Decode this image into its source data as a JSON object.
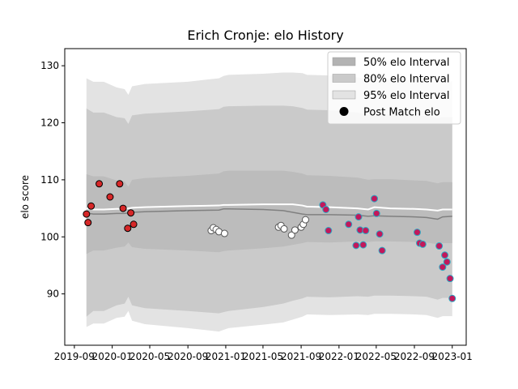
{
  "chart_data": {
    "type": "scatter",
    "title": "Erich Cronje: elo History",
    "ylabel": "elo score",
    "xlabel": "",
    "ylim": [
      81,
      133
    ],
    "xlim": [
      "2019-08-01",
      "2023-02-15"
    ],
    "x_ticks": [
      "2019-09",
      "2020-01",
      "2020-05",
      "2020-09",
      "2021-01",
      "2021-05",
      "2021-09",
      "2022-01",
      "2022-05",
      "2022-09",
      "2023-01"
    ],
    "x_tick_dates": [
      "2019-09-01",
      "2020-01-01",
      "2020-05-01",
      "2020-09-01",
      "2021-01-01",
      "2021-05-01",
      "2021-09-01",
      "2022-01-01",
      "2022-05-01",
      "2022-09-01",
      "2023-01-01"
    ],
    "y_ticks": [
      90,
      100,
      110,
      120,
      130
    ],
    "grid": false,
    "legend": {
      "position": "top-right",
      "entries": [
        {
          "label": "50% elo Interval",
          "color": "#b3b3b3"
        },
        {
          "label": "80% elo Interval",
          "color": "#cacaca"
        },
        {
          "label": "95% elo Interval",
          "color": "#e3e3e3"
        },
        {
          "label": "Post Match elo",
          "color": "#000000"
        }
      ]
    },
    "bands": {
      "x": [
        "2019-10-10",
        "2019-11-01",
        "2019-12-05",
        "2020-01-15",
        "2020-02-10",
        "2020-02-22",
        "2020-03-05",
        "2020-04-15",
        "2020-09-01",
        "2020-12-10",
        "2020-12-25",
        "2021-01-10",
        "2021-05-01",
        "2021-07-05",
        "2021-08-05",
        "2021-09-05",
        "2021-09-20",
        "2021-12-01",
        "2022-03-01",
        "2022-04-05",
        "2022-04-25",
        "2022-06-15",
        "2022-09-01",
        "2022-10-10",
        "2022-11-15",
        "2022-12-01",
        "2023-01-01"
      ],
      "p95_upper": [
        127.8,
        127.2,
        127.2,
        126.2,
        125.9,
        124.9,
        126.4,
        126.8,
        127.2,
        127.8,
        128.2,
        128.4,
        128.6,
        128.8,
        128.8,
        128.7,
        128.4,
        128.3,
        128.0,
        127.6,
        127.6,
        127.6,
        127.4,
        127.4,
        127.2,
        127.3,
        127.3
      ],
      "p95_lower": [
        84.2,
        84.8,
        84.8,
        85.8,
        86.0,
        87.0,
        85.3,
        84.7,
        84.0,
        83.4,
        83.7,
        84.0,
        84.6,
        85.0,
        85.5,
        86.0,
        86.4,
        86.3,
        86.4,
        86.3,
        86.5,
        86.5,
        86.4,
        86.3,
        85.8,
        86.1,
        86.1
      ],
      "p80_upper": [
        122.5,
        121.8,
        121.8,
        121.0,
        120.8,
        119.8,
        121.3,
        121.6,
        122.0,
        122.4,
        122.8,
        122.9,
        123.0,
        123.0,
        122.9,
        122.6,
        122.3,
        122.2,
        121.8,
        121.4,
        121.5,
        121.5,
        121.2,
        121.2,
        120.8,
        121.0,
        121.0
      ],
      "p80_lower": [
        86.0,
        87.0,
        87.0,
        88.0,
        88.3,
        89.5,
        88.0,
        87.5,
        87.0,
        86.6,
        86.8,
        87.0,
        87.7,
        88.3,
        88.8,
        89.2,
        89.5,
        89.4,
        89.6,
        89.5,
        89.7,
        89.7,
        89.6,
        89.5,
        89.0,
        89.3,
        89.3
      ],
      "p50_upper": [
        111.0,
        110.6,
        110.6,
        109.9,
        109.7,
        108.8,
        110.0,
        110.3,
        110.7,
        111.1,
        111.5,
        111.6,
        111.6,
        111.6,
        111.4,
        111.1,
        110.8,
        110.7,
        110.4,
        110.0,
        110.1,
        110.1,
        109.9,
        109.8,
        109.4,
        109.6,
        109.6
      ],
      "p50_lower": [
        97.0,
        97.6,
        97.6,
        98.1,
        98.3,
        99.0,
        98.2,
        97.9,
        97.6,
        97.3,
        97.5,
        97.6,
        98.0,
        98.3,
        98.6,
        98.9,
        99.1,
        99.0,
        99.2,
        99.1,
        99.2,
        99.2,
        99.1,
        99.0,
        98.7,
        98.9,
        98.9
      ],
      "median": [
        104.2,
        104.0,
        104.0,
        104.1,
        104.1,
        104.2,
        104.3,
        104.4,
        104.6,
        104.7,
        104.9,
        104.9,
        104.8,
        104.6,
        104.3,
        104.0,
        103.9,
        103.9,
        103.8,
        103.6,
        103.7,
        103.6,
        103.5,
        103.4,
        103.1,
        103.5,
        103.6
      ],
      "mean": [
        105.0,
        104.8,
        104.8,
        104.9,
        104.9,
        105.0,
        105.1,
        105.2,
        105.4,
        105.5,
        105.6,
        105.6,
        105.7,
        105.7,
        105.7,
        105.5,
        105.3,
        105.2,
        105.0,
        104.8,
        105.2,
        105.0,
        104.9,
        104.8,
        104.6,
        104.8,
        104.8
      ]
    },
    "series": [
      {
        "marker": "circle",
        "fill": "#d62728",
        "edge": "#000000",
        "points": [
          {
            "x": "2019-10-10",
            "y": 104.0
          },
          {
            "x": "2019-10-15",
            "y": 102.5
          },
          {
            "x": "2019-10-25",
            "y": 105.4
          },
          {
            "x": "2019-11-20",
            "y": 109.3
          },
          {
            "x": "2019-12-25",
            "y": 107.0
          },
          {
            "x": "2020-01-25",
            "y": 109.3
          },
          {
            "x": "2020-02-05",
            "y": 105.0
          },
          {
            "x": "2020-02-20",
            "y": 101.5
          },
          {
            "x": "2020-03-01",
            "y": 104.2
          },
          {
            "x": "2020-03-10",
            "y": 102.2
          }
        ]
      },
      {
        "marker": "circle",
        "fill": "#ffffff",
        "edge": "#555555",
        "points": [
          {
            "x": "2020-11-15",
            "y": 101.1
          },
          {
            "x": "2020-11-22",
            "y": 101.6
          },
          {
            "x": "2020-12-01",
            "y": 101.3
          },
          {
            "x": "2020-12-10",
            "y": 100.9
          },
          {
            "x": "2020-12-28",
            "y": 100.6
          },
          {
            "x": "2021-06-20",
            "y": 101.7
          },
          {
            "x": "2021-06-28",
            "y": 102.0
          },
          {
            "x": "2021-07-08",
            "y": 101.4
          },
          {
            "x": "2021-08-01",
            "y": 100.3
          },
          {
            "x": "2021-08-12",
            "y": 101.2
          },
          {
            "x": "2021-09-01",
            "y": 101.7
          },
          {
            "x": "2021-09-08",
            "y": 102.2
          },
          {
            "x": "2021-09-15",
            "y": 103.0
          }
        ]
      },
      {
        "marker": "circle",
        "fill": "#c2185b",
        "edge": "#2aa8c4",
        "points": [
          {
            "x": "2021-11-10",
            "y": 105.6
          },
          {
            "x": "2021-11-20",
            "y": 104.8
          },
          {
            "x": "2021-11-28",
            "y": 101.1
          },
          {
            "x": "2022-02-01",
            "y": 102.2
          },
          {
            "x": "2022-02-25",
            "y": 98.5
          },
          {
            "x": "2022-03-05",
            "y": 103.5
          },
          {
            "x": "2022-03-10",
            "y": 101.2
          },
          {
            "x": "2022-03-20",
            "y": 98.6
          },
          {
            "x": "2022-03-28",
            "y": 101.1
          },
          {
            "x": "2022-04-25",
            "y": 106.7
          },
          {
            "x": "2022-05-02",
            "y": 104.1
          },
          {
            "x": "2022-05-12",
            "y": 100.5
          },
          {
            "x": "2022-05-20",
            "y": 97.6
          },
          {
            "x": "2022-09-10",
            "y": 100.8
          },
          {
            "x": "2022-09-18",
            "y": 98.9
          },
          {
            "x": "2022-09-28",
            "y": 98.7
          },
          {
            "x": "2022-11-20",
            "y": 98.4
          },
          {
            "x": "2022-12-01",
            "y": 94.7
          },
          {
            "x": "2022-12-08",
            "y": 96.8
          },
          {
            "x": "2022-12-15",
            "y": 95.6
          },
          {
            "x": "2022-12-25",
            "y": 92.7
          },
          {
            "x": "2023-01-01",
            "y": 89.2
          }
        ]
      }
    ]
  }
}
